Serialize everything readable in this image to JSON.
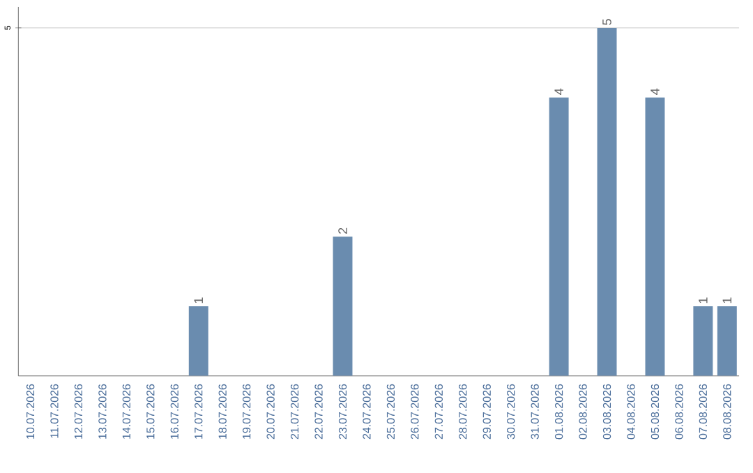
{
  "chart_data": {
    "type": "bar",
    "categories": [
      "10.07.2026",
      "11.07.2026",
      "12.07.2026",
      "13.07.2026",
      "14.07.2026",
      "15.07.2026",
      "16.07.2026",
      "17.07.2026",
      "18.07.2026",
      "19.07.2026",
      "20.07.2026",
      "21.07.2026",
      "22.07.2026",
      "23.07.2026",
      "24.07.2026",
      "25.07.2026",
      "26.07.2026",
      "27.07.2026",
      "28.07.2026",
      "29.07.2026",
      "30.07.2026",
      "31.07.2026",
      "01.08.2026",
      "02.08.2026",
      "03.08.2026",
      "04.08.2026",
      "05.08.2026",
      "06.08.2026",
      "07.08.2026",
      "08.08.2026"
    ],
    "values": [
      0,
      0,
      0,
      0,
      0,
      0,
      0,
      1,
      0,
      0,
      0,
      0,
      0,
      2,
      0,
      0,
      0,
      0,
      0,
      0,
      0,
      0,
      4,
      0,
      5,
      0,
      4,
      0,
      1,
      1
    ],
    "value_labels": [
      null,
      null,
      null,
      null,
      null,
      null,
      null,
      "1",
      null,
      null,
      null,
      null,
      null,
      "2",
      null,
      null,
      null,
      null,
      null,
      null,
      null,
      null,
      "4",
      null,
      "5",
      null,
      "4",
      null,
      "1",
      "1"
    ],
    "color": "#6a8caf",
    "ylim": [
      0,
      5.3
    ],
    "yticks": [
      5
    ],
    "grid": "y"
  }
}
